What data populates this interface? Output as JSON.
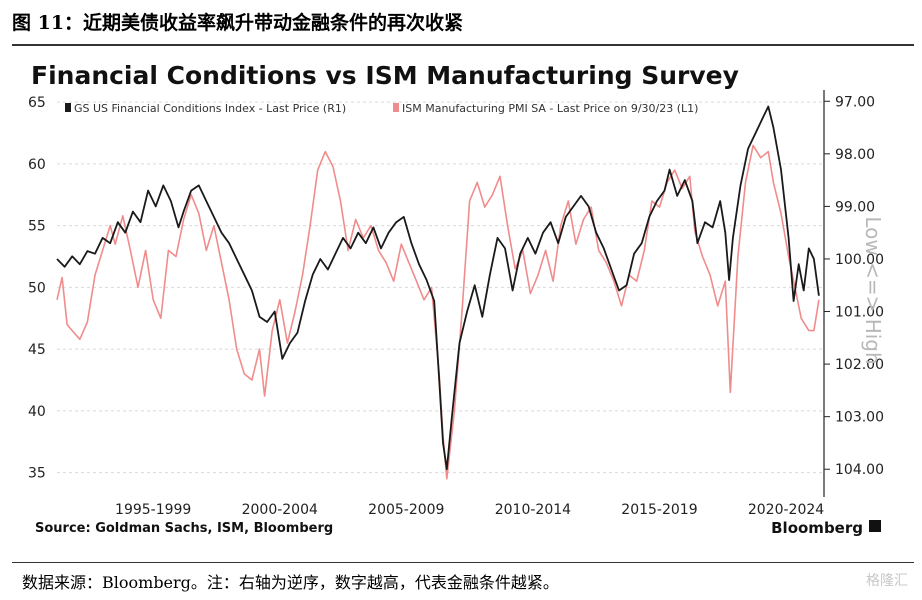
{
  "figure": {
    "caption": "图 11：近期美债收益率飙升带动金融条件的再次收紧",
    "note": "数据来源：Bloomberg。注：右轴为逆序，数字越高，代表金融条件越紧。",
    "watermark": "格隆汇"
  },
  "chart_data": {
    "type": "line",
    "title": "Financial Conditions vs ISM Manufacturing Survey",
    "source": "Source: Goldman Sachs, ISM, Bloomberg",
    "brand": "Bloomberg",
    "x_tick_labels": [
      "1995-1999",
      "2000-2004",
      "2005-2009",
      "2010-2014",
      "2015-2019",
      "2020-2024"
    ],
    "x_tick_years": [
      1997.5,
      2002.5,
      2007.5,
      2012.5,
      2017.5,
      2022.5
    ],
    "xlim": [
      1993.7,
      2024.0
    ],
    "left_axis": {
      "ticks": [
        "35",
        "40",
        "45",
        "50",
        "55",
        "60",
        "65"
      ],
      "ylim": [
        34,
        65.5
      ]
    },
    "right_axis": {
      "ticks": [
        "97.00",
        "98.00",
        "99.00",
        "100.00",
        "101.00",
        "102.00",
        "103.00",
        "104.00"
      ],
      "ylim": [
        96.9,
        104.3
      ],
      "inverted": true,
      "label": "Low <=> High"
    },
    "series": [
      {
        "name": "GS US Financial Conditions Index - Last Price (R1)",
        "axis": "right",
        "color": "#1a1a1a",
        "points": [
          [
            1993.7,
            100.0
          ],
          [
            1994.0,
            100.15
          ],
          [
            1994.3,
            99.95
          ],
          [
            1994.6,
            100.1
          ],
          [
            1994.9,
            99.85
          ],
          [
            1995.2,
            99.9
          ],
          [
            1995.5,
            99.6
          ],
          [
            1995.8,
            99.7
          ],
          [
            1996.1,
            99.3
          ],
          [
            1996.4,
            99.5
          ],
          [
            1996.7,
            99.1
          ],
          [
            1997.0,
            99.3
          ],
          [
            1997.3,
            98.7
          ],
          [
            1997.6,
            99.0
          ],
          [
            1997.9,
            98.6
          ],
          [
            1998.2,
            98.9
          ],
          [
            1998.5,
            99.4
          ],
          [
            1998.7,
            99.1
          ],
          [
            1999.0,
            98.7
          ],
          [
            1999.3,
            98.6
          ],
          [
            1999.6,
            98.9
          ],
          [
            1999.9,
            99.2
          ],
          [
            2000.2,
            99.5
          ],
          [
            2000.5,
            99.7
          ],
          [
            2000.8,
            100.0
          ],
          [
            2001.1,
            100.3
          ],
          [
            2001.4,
            100.6
          ],
          [
            2001.7,
            101.1
          ],
          [
            2002.0,
            101.2
          ],
          [
            2002.3,
            101.0
          ],
          [
            2002.6,
            101.9
          ],
          [
            2002.9,
            101.6
          ],
          [
            2003.2,
            101.4
          ],
          [
            2003.5,
            100.8
          ],
          [
            2003.8,
            100.3
          ],
          [
            2004.1,
            100.0
          ],
          [
            2004.4,
            100.2
          ],
          [
            2004.7,
            99.9
          ],
          [
            2005.0,
            99.6
          ],
          [
            2005.3,
            99.8
          ],
          [
            2005.6,
            99.5
          ],
          [
            2005.9,
            99.7
          ],
          [
            2006.2,
            99.4
          ],
          [
            2006.5,
            99.8
          ],
          [
            2006.8,
            99.5
          ],
          [
            2007.1,
            99.3
          ],
          [
            2007.4,
            99.2
          ],
          [
            2007.7,
            99.7
          ],
          [
            2008.0,
            100.1
          ],
          [
            2008.3,
            100.4
          ],
          [
            2008.6,
            100.8
          ],
          [
            2008.8,
            102.3
          ],
          [
            2008.95,
            103.5
          ],
          [
            2009.1,
            104.0
          ],
          [
            2009.3,
            103.0
          ],
          [
            2009.6,
            101.6
          ],
          [
            2009.9,
            101.0
          ],
          [
            2010.2,
            100.5
          ],
          [
            2010.5,
            101.1
          ],
          [
            2010.8,
            100.3
          ],
          [
            2011.1,
            99.6
          ],
          [
            2011.4,
            99.8
          ],
          [
            2011.7,
            100.6
          ],
          [
            2012.0,
            99.9
          ],
          [
            2012.3,
            99.6
          ],
          [
            2012.6,
            99.9
          ],
          [
            2012.9,
            99.5
          ],
          [
            2013.2,
            99.3
          ],
          [
            2013.5,
            99.7
          ],
          [
            2013.8,
            99.2
          ],
          [
            2014.1,
            99.0
          ],
          [
            2014.4,
            98.8
          ],
          [
            2014.7,
            99.0
          ],
          [
            2015.0,
            99.5
          ],
          [
            2015.3,
            99.8
          ],
          [
            2015.6,
            100.2
          ],
          [
            2015.9,
            100.6
          ],
          [
            2016.2,
            100.5
          ],
          [
            2016.5,
            99.9
          ],
          [
            2016.8,
            99.7
          ],
          [
            2017.1,
            99.2
          ],
          [
            2017.4,
            98.9
          ],
          [
            2017.7,
            98.7
          ],
          [
            2017.9,
            98.3
          ],
          [
            2018.2,
            98.8
          ],
          [
            2018.5,
            98.5
          ],
          [
            2018.8,
            98.9
          ],
          [
            2019.0,
            99.7
          ],
          [
            2019.3,
            99.3
          ],
          [
            2019.6,
            99.4
          ],
          [
            2019.9,
            98.9
          ],
          [
            2020.1,
            99.5
          ],
          [
            2020.25,
            100.4
          ],
          [
            2020.4,
            99.6
          ],
          [
            2020.7,
            98.6
          ],
          [
            2021.0,
            97.9
          ],
          [
            2021.3,
            97.6
          ],
          [
            2021.6,
            97.3
          ],
          [
            2021.8,
            97.1
          ],
          [
            2022.0,
            97.5
          ],
          [
            2022.3,
            98.3
          ],
          [
            2022.6,
            99.6
          ],
          [
            2022.8,
            100.8
          ],
          [
            2023.0,
            100.1
          ],
          [
            2023.2,
            100.6
          ],
          [
            2023.4,
            99.8
          ],
          [
            2023.6,
            100.0
          ],
          [
            2023.8,
            100.7
          ]
        ]
      },
      {
        "name": "ISM Manufacturing PMI SA - Last Price on 9/30/23 (L1)",
        "axis": "left",
        "color": "#f08c8c",
        "points": [
          [
            1993.7,
            49.0
          ],
          [
            1993.9,
            50.8
          ],
          [
            1994.1,
            47.0
          ],
          [
            1994.3,
            46.5
          ],
          [
            1994.6,
            45.8
          ],
          [
            1994.9,
            47.2
          ],
          [
            1995.2,
            51.0
          ],
          [
            1995.5,
            53.0
          ],
          [
            1995.8,
            55.0
          ],
          [
            1996.0,
            53.5
          ],
          [
            1996.3,
            55.8
          ],
          [
            1996.6,
            53.0
          ],
          [
            1996.9,
            50.0
          ],
          [
            1997.2,
            53.0
          ],
          [
            1997.5,
            49.0
          ],
          [
            1997.8,
            47.5
          ],
          [
            1998.1,
            53.0
          ],
          [
            1998.4,
            52.5
          ],
          [
            1998.7,
            55.5
          ],
          [
            1999.0,
            57.5
          ],
          [
            1999.3,
            56.0
          ],
          [
            1999.6,
            53.0
          ],
          [
            1999.9,
            55.0
          ],
          [
            2000.2,
            52.0
          ],
          [
            2000.5,
            49.0
          ],
          [
            2000.8,
            45.0
          ],
          [
            2001.1,
            43.0
          ],
          [
            2001.4,
            42.5
          ],
          [
            2001.7,
            45.0
          ],
          [
            2001.9,
            41.2
          ],
          [
            2002.2,
            46.5
          ],
          [
            2002.5,
            49.0
          ],
          [
            2002.8,
            45.5
          ],
          [
            2003.1,
            48.0
          ],
          [
            2003.4,
            51.0
          ],
          [
            2003.7,
            55.0
          ],
          [
            2004.0,
            59.5
          ],
          [
            2004.3,
            61.0
          ],
          [
            2004.6,
            59.8
          ],
          [
            2004.9,
            57.0
          ],
          [
            2005.2,
            53.0
          ],
          [
            2005.5,
            55.5
          ],
          [
            2005.8,
            54.0
          ],
          [
            2006.1,
            55.0
          ],
          [
            2006.4,
            53.0
          ],
          [
            2006.7,
            52.0
          ],
          [
            2007.0,
            50.5
          ],
          [
            2007.3,
            53.5
          ],
          [
            2007.6,
            52.0
          ],
          [
            2007.9,
            50.5
          ],
          [
            2008.2,
            49.0
          ],
          [
            2008.5,
            50.0
          ],
          [
            2008.8,
            43.0
          ],
          [
            2008.95,
            38.0
          ],
          [
            2009.1,
            34.5
          ],
          [
            2009.4,
            40.0
          ],
          [
            2009.7,
            48.0
          ],
          [
            2010.0,
            57.0
          ],
          [
            2010.3,
            58.5
          ],
          [
            2010.6,
            56.5
          ],
          [
            2010.9,
            57.5
          ],
          [
            2011.2,
            59.0
          ],
          [
            2011.5,
            55.0
          ],
          [
            2011.8,
            51.5
          ],
          [
            2012.1,
            53.0
          ],
          [
            2012.4,
            49.5
          ],
          [
            2012.7,
            51.0
          ],
          [
            2013.0,
            53.0
          ],
          [
            2013.3,
            50.5
          ],
          [
            2013.6,
            55.0
          ],
          [
            2013.9,
            57.0
          ],
          [
            2014.2,
            53.5
          ],
          [
            2014.5,
            55.5
          ],
          [
            2014.8,
            56.5
          ],
          [
            2015.1,
            53.0
          ],
          [
            2015.4,
            52.0
          ],
          [
            2015.7,
            50.5
          ],
          [
            2016.0,
            48.5
          ],
          [
            2016.3,
            51.0
          ],
          [
            2016.6,
            50.5
          ],
          [
            2016.9,
            53.0
          ],
          [
            2017.2,
            57.0
          ],
          [
            2017.5,
            56.5
          ],
          [
            2017.8,
            58.5
          ],
          [
            2018.1,
            59.5
          ],
          [
            2018.4,
            58.0
          ],
          [
            2018.7,
            59.0
          ],
          [
            2018.9,
            54.5
          ],
          [
            2019.2,
            52.5
          ],
          [
            2019.5,
            51.0
          ],
          [
            2019.8,
            48.5
          ],
          [
            2020.1,
            50.5
          ],
          [
            2020.3,
            41.5
          ],
          [
            2020.6,
            52.5
          ],
          [
            2020.9,
            58.5
          ],
          [
            2021.2,
            61.5
          ],
          [
            2021.5,
            60.5
          ],
          [
            2021.8,
            61.0
          ],
          [
            2022.0,
            58.5
          ],
          [
            2022.3,
            56.0
          ],
          [
            2022.6,
            52.5
          ],
          [
            2022.9,
            49.5
          ],
          [
            2023.1,
            47.5
          ],
          [
            2023.4,
            46.5
          ],
          [
            2023.6,
            46.5
          ],
          [
            2023.8,
            49.0
          ]
        ]
      }
    ]
  }
}
